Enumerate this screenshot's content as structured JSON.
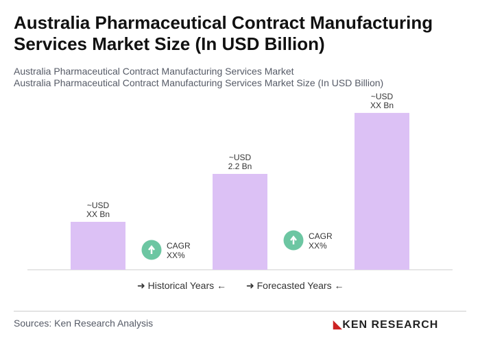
{
  "title": "Australia Pharmaceutical Contract Manufacturing Services Market Size (In USD Billion)",
  "subtitle_1": "Australia Pharmaceutical Contract Manufacturing Services Market",
  "subtitle_2": "Australia Pharmaceutical Contract Manufacturing Services Market Size (In USD Billion)",
  "chart_data": {
    "type": "bar",
    "categories": [
      "",
      "",
      ""
    ],
    "values": [
      1.1,
      2.2,
      3.6
    ],
    "data_labels": [
      [
        "~USD",
        "XX Bn"
      ],
      [
        "~USD",
        "2.2 Bn"
      ],
      [
        "~USD",
        "XX Bn"
      ]
    ],
    "bar_color": "#dcc1f5",
    "cagr": [
      {
        "label": "CAGR",
        "value": "XX%"
      },
      {
        "label": "CAGR",
        "value": "XX%"
      }
    ],
    "cagr_color": "#6cc6a2",
    "grid": false
  },
  "legend": {
    "historical": "Historical Years",
    "forecasted": "Forecasted Years"
  },
  "sources": "Sources: Ken Research Analysis",
  "logo": "KEN RESEARCH"
}
